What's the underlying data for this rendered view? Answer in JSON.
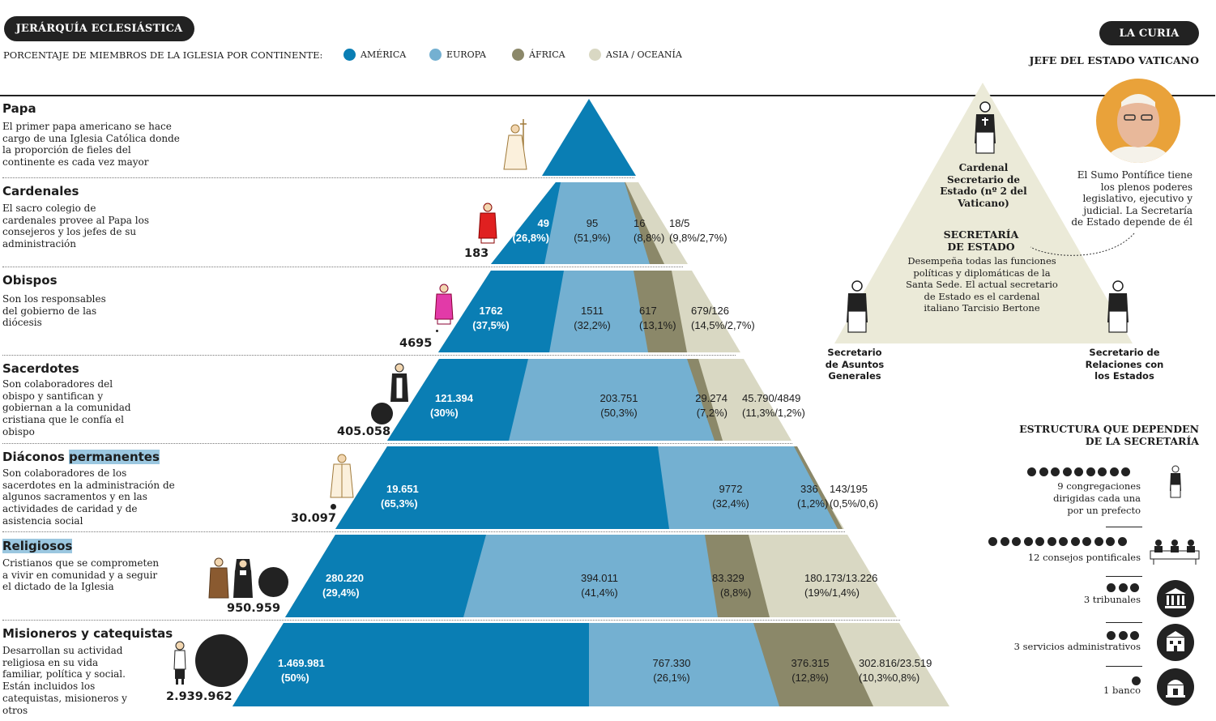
{
  "header": {
    "title": "JERÁRQUÍA ECLESIÁSTICA",
    "subtitle": "PORCENTAJE DE MIEMBROS DE LA IGLESIA POR CONTINENTE:",
    "legend": [
      {
        "label": "AMÉRICA",
        "color": "#0a7eb4"
      },
      {
        "label": "EUROPA",
        "color": "#74b0d1"
      },
      {
        "label": "ÁFRICA",
        "color": "#8b8869"
      },
      {
        "label": "ASIA / OCEANÍA",
        "color": "#d9d8c3"
      }
    ]
  },
  "levels": [
    {
      "title": "Papa",
      "desc": "El primer papa americano se hace cargo de una Iglesia Católica donde la proporción de fieles del continente es cada vez mayor"
    },
    {
      "title": "Cardenales",
      "desc": "El sacro colegio de cardenales provee al Papa los consejeros y los jefes de su administración",
      "total": "183",
      "values": [
        {
          "v": "49",
          "p": "(26,8%)"
        },
        {
          "v": "95",
          "p": "(51,9%)"
        },
        {
          "v": "16",
          "p": "(8,8%)"
        },
        {
          "v": "18/5",
          "p": "(9,8%/2,7%)"
        }
      ]
    },
    {
      "title": "Obispos",
      "desc": "Son los responsables del gobierno de las diócesis",
      "total": "4695",
      "values": [
        {
          "v": "1762",
          "p": "(37,5%)"
        },
        {
          "v": "1511",
          "p": "(32,2%)"
        },
        {
          "v": "617",
          "p": "(13,1%)"
        },
        {
          "v": "679/126",
          "p": "(14,5%/2,7%)"
        }
      ]
    },
    {
      "title": "Sacerdotes",
      "desc": "Son colaboradores del obispo y santifican y gobiernan a la comunidad cristiana que le confía el obispo",
      "total": "405.058",
      "values": [
        {
          "v": "121.394",
          "p": "(30%)"
        },
        {
          "v": "203.751",
          "p": "(50,3%)"
        },
        {
          "v": "29.274",
          "p": "(7,2%)"
        },
        {
          "v": "45.790/4849",
          "p": "(11,3%/1,2%)"
        }
      ]
    },
    {
      "title_a": "Diáconos ",
      "title_b": "permanentes",
      "desc": "Son colaboradores de los sacerdotes en la administración de algunos sacramentos y en las actividades de caridad y de asistencia social",
      "total": "30.097",
      "values": [
        {
          "v": "19.651",
          "p": "(65,3%)"
        },
        {
          "v": "9772",
          "p": "(32,4%)"
        },
        {
          "v": "336",
          "p": "(1,2%)"
        },
        {
          "v": "143/195",
          "p": "(0,5%/0,6)"
        }
      ]
    },
    {
      "title": "Religiosos",
      "desc": "Cristianos que se comprometen a vivir en comunidad y a seguir el dictado  de la Iglesia",
      "total": "950.959",
      "values": [
        {
          "v": "280.220",
          "p": "(29,4%)"
        },
        {
          "v": "394.011",
          "p": "(41,4%)"
        },
        {
          "v": "83.329",
          "p": "(8,8%)"
        },
        {
          "v": "180.173/13.226",
          "p": "(19%/1,4%)"
        }
      ]
    },
    {
      "title": "Misioneros y catequistas",
      "desc": "Desarrollan su actividad religiosa en su vida familiar, política y social. Están incluidos los catequistas, misioneros y otros",
      "total": "2.939.962",
      "values": [
        {
          "v": "1.469.981",
          "p": "(50%)"
        },
        {
          "v": "767.330",
          "p": "(26,1%)"
        },
        {
          "v": "376.315",
          "p": "(12,8%)"
        },
        {
          "v": "302.816/23.519",
          "p": "(10,3%0,8%)"
        }
      ]
    }
  ],
  "curia": {
    "title": "LA CURIA",
    "jefe": "JEFE DEL ESTADO VATICANO",
    "pontifice_text": "El Sumo Pontífice tiene los plenos poderes legislativo, ejecutivo y judicial. La Secretaría de Estado depende de él",
    "cardenal": "Cardenal Secretario de Estado (nº 2 del Vaticano)",
    "secretaria_title": "SECRETARÍA DE ESTADO",
    "secretaria_text": "Desempeña todas las funciones políticas y diplomáticas de la Santa Sede. El actual secretario de Estado es el cardenal italiano Tarcisio Bertone",
    "secretario_asuntos": "Secretario de Asuntos Generales",
    "secretario_relaciones": "Secretario de Relaciones con los Estados",
    "estructura_title": "ESTRUCTURA QUE DEPENDEN DE LA SECRETARÍA",
    "estructura": [
      {
        "label": "9 congregaciones dirigidas  cada una por un prefecto",
        "count": 9
      },
      {
        "label": "12 consejos pontificales",
        "count": 12
      },
      {
        "label": "3 tribunales",
        "count": 3
      },
      {
        "label": "3 servicios administrativos",
        "count": 3
      },
      {
        "label": "1 banco",
        "count": 1
      }
    ]
  }
}
